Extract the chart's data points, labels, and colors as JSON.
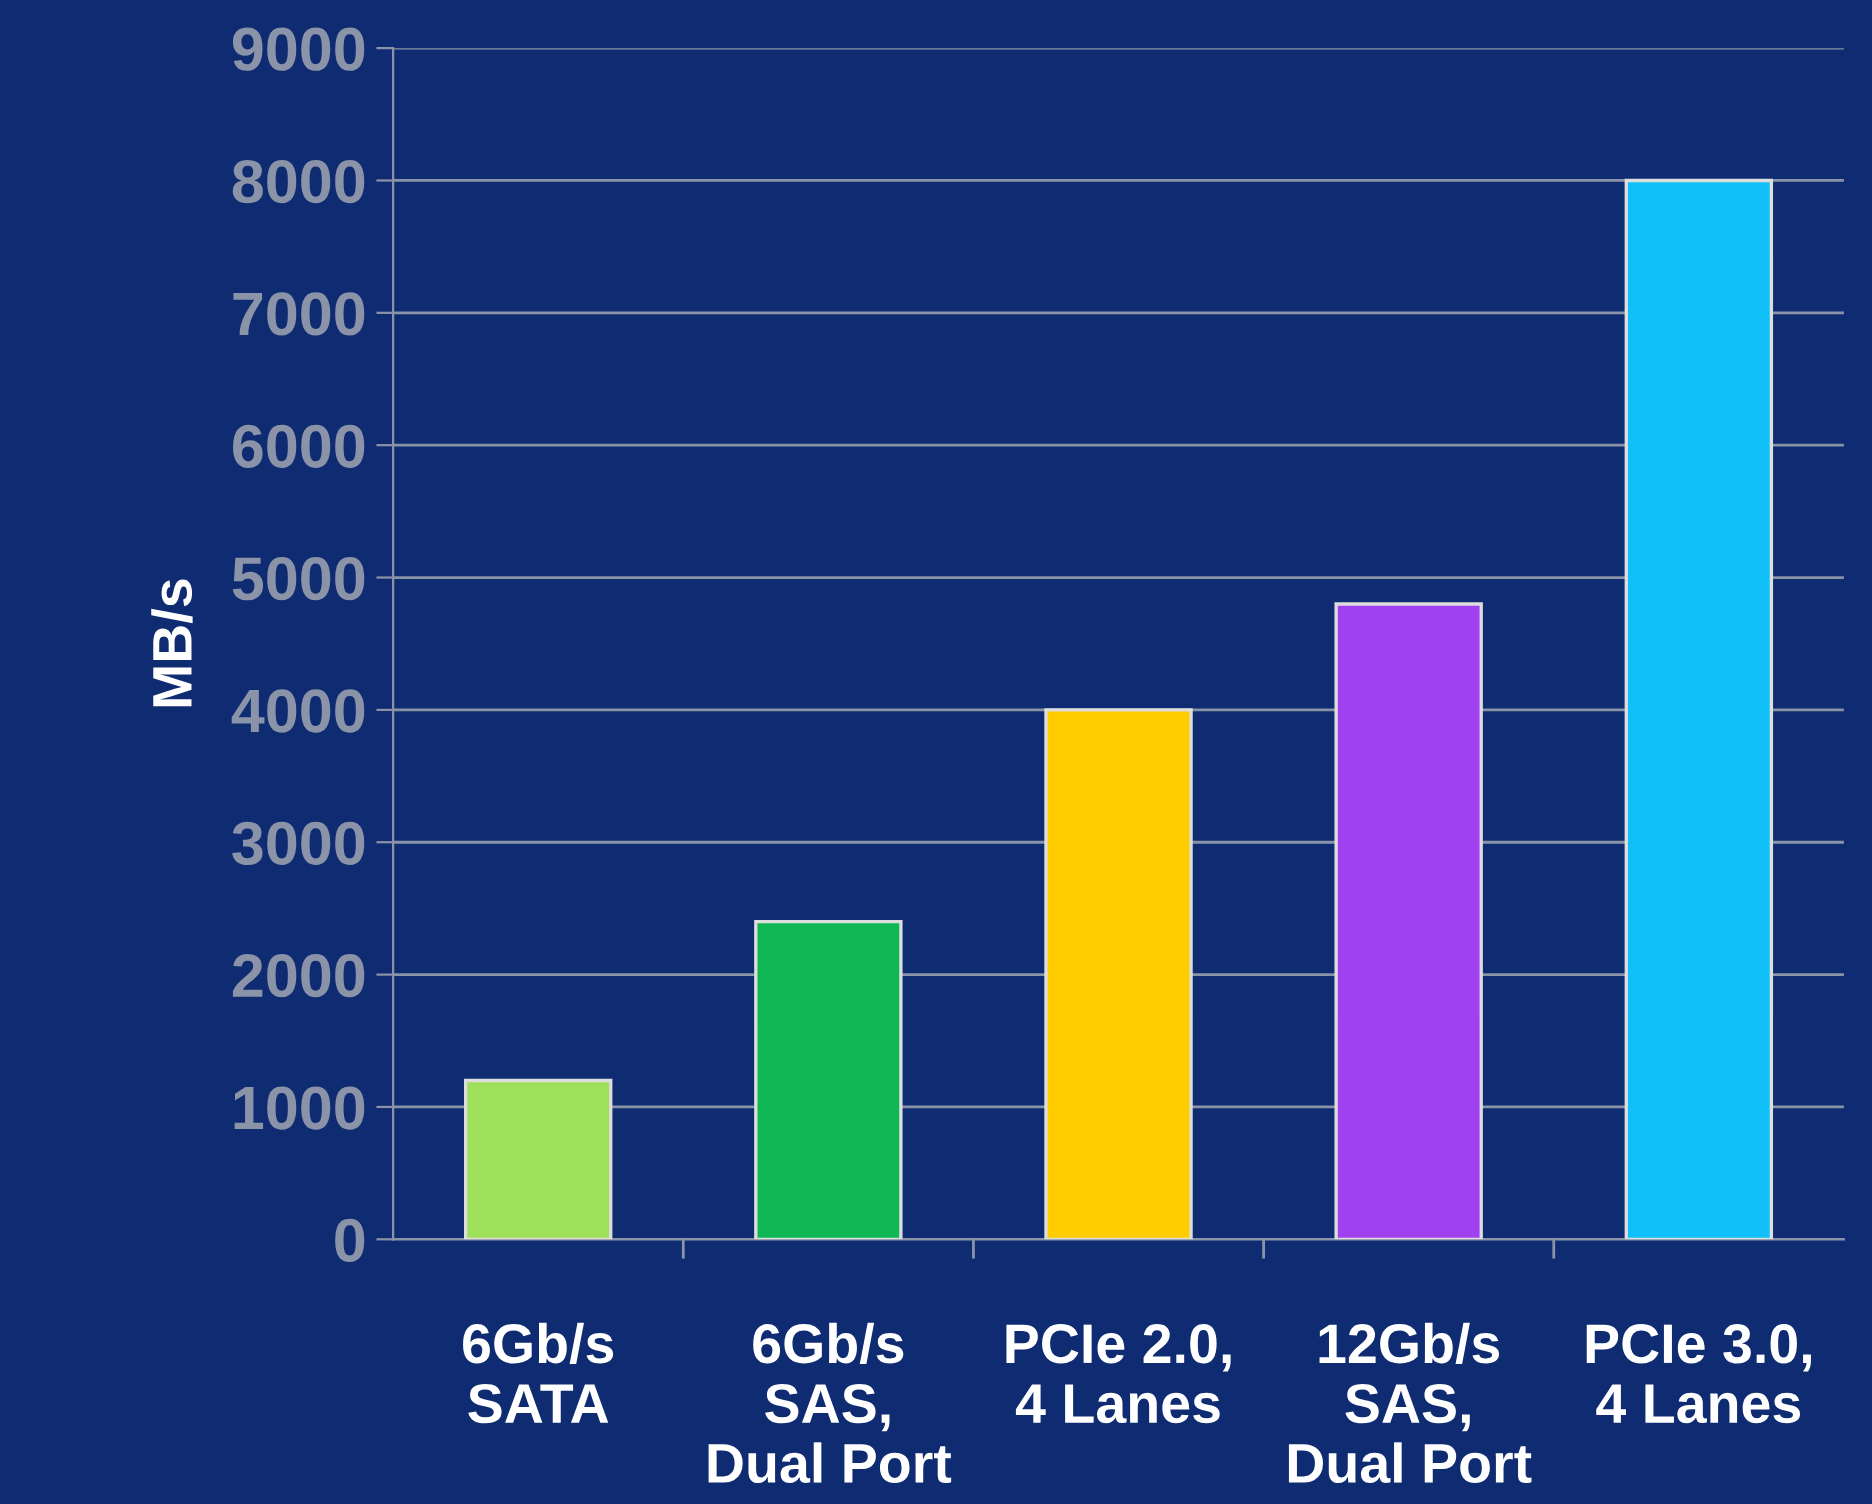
{
  "chart_data": {
    "type": "bar",
    "ylabel": "MB/s",
    "categories": [
      "6Gb/s\nSATA",
      "6Gb/s\nSAS,\nDual Port",
      "PCIe 2.0,\n4 Lanes",
      "12Gb/s\nSAS,\nDual Port",
      "PCIe 3.0,\n4 Lanes"
    ],
    "values": [
      1200,
      2400,
      4000,
      4800,
      8000
    ],
    "colors": [
      "#9ee05a",
      "#10b855",
      "#ffcc00",
      "#a040f0",
      "#10c0f8"
    ],
    "ylim": [
      0,
      9000
    ],
    "yticks": [
      0,
      1000,
      2000,
      3000,
      4000,
      5000,
      6000,
      7000,
      8000,
      9000
    ],
    "grid": "y",
    "legend": false
  }
}
